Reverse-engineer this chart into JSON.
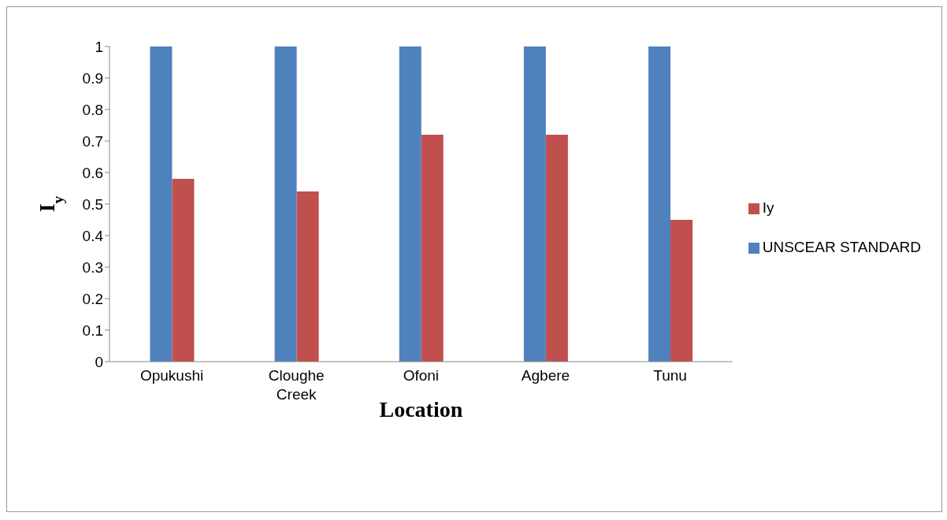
{
  "chart_data": {
    "type": "bar",
    "xlabel": "Location",
    "ylabel": "I$_{y}$",
    "categories": [
      "Opukushi",
      "Cloughe Creek",
      "Ofoni",
      "Agbere",
      "Tunu"
    ],
    "series": [
      {
        "name": "UNSCEAR STANDARD",
        "color": "#4f81bd",
        "values": [
          1,
          1,
          1,
          1,
          1
        ]
      },
      {
        "name": "Iy",
        "color": "#c0504d",
        "values": [
          0.58,
          0.54,
          0.72,
          0.72,
          0.45
        ]
      }
    ],
    "ylim": [
      0,
      1
    ],
    "yticks": [
      0,
      0.1,
      0.2,
      0.3,
      0.4,
      0.5,
      0.6,
      0.7,
      0.8,
      0.9,
      1
    ],
    "grid": false,
    "legend": "right"
  }
}
